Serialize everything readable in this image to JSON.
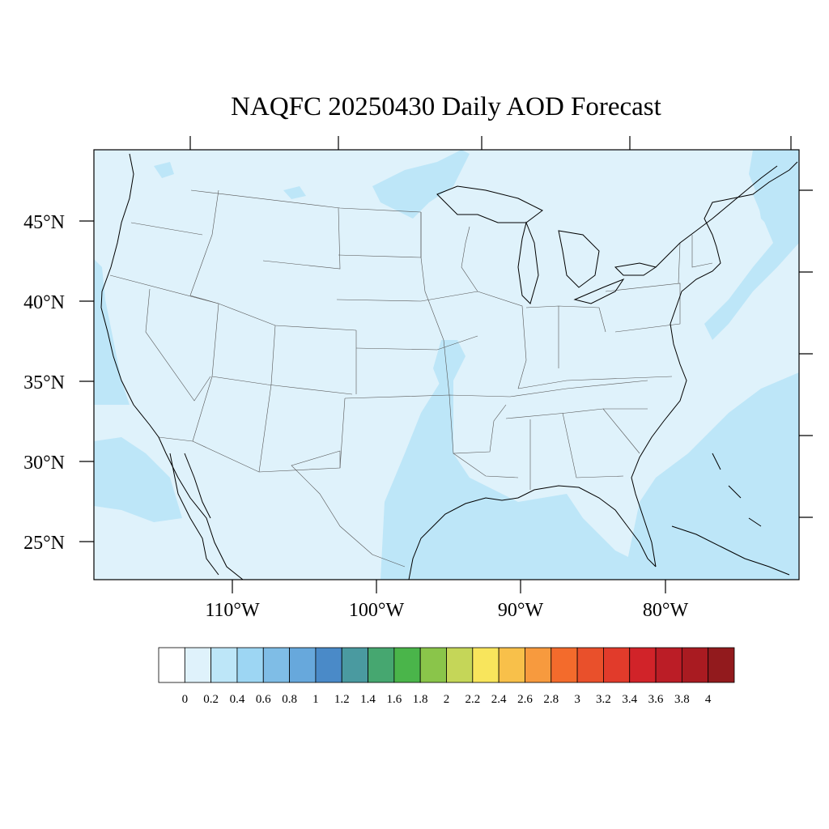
{
  "title": "NAQFC 20250430 Daily AOD Forecast",
  "colors": {
    "background_field": "#dff2fb",
    "enhanced_field": "#bde6f8",
    "frame": "#000000"
  },
  "map": {
    "lon_labels": [
      "110°W",
      "100°W",
      "90°W",
      "80°W"
    ],
    "lat_labels": [
      "45°N",
      "40°N",
      "35°N",
      "30°N",
      "25°N"
    ]
  },
  "colorbar": {
    "labels": [
      "0",
      "0.2",
      "0.4",
      "0.6",
      "0.8",
      "1",
      "1.2",
      "1.4",
      "1.6",
      "1.8",
      "2",
      "2.2",
      "2.4",
      "2.6",
      "2.8",
      "3",
      "3.2",
      "3.4",
      "3.6",
      "3.8",
      "4"
    ],
    "colors": [
      "#ffffff",
      "#dff2fb",
      "#bde6f8",
      "#9dd6f3",
      "#7fbde6",
      "#67a8dc",
      "#4a8ac8",
      "#4a9aa0",
      "#46a770",
      "#4ab54a",
      "#8ac54a",
      "#c5d658",
      "#f8e55c",
      "#f8c04a",
      "#f79a3e",
      "#f36b2c",
      "#e9502b",
      "#e13b2b",
      "#d12329",
      "#bb1d26",
      "#a91b21",
      "#921a1d"
    ]
  }
}
